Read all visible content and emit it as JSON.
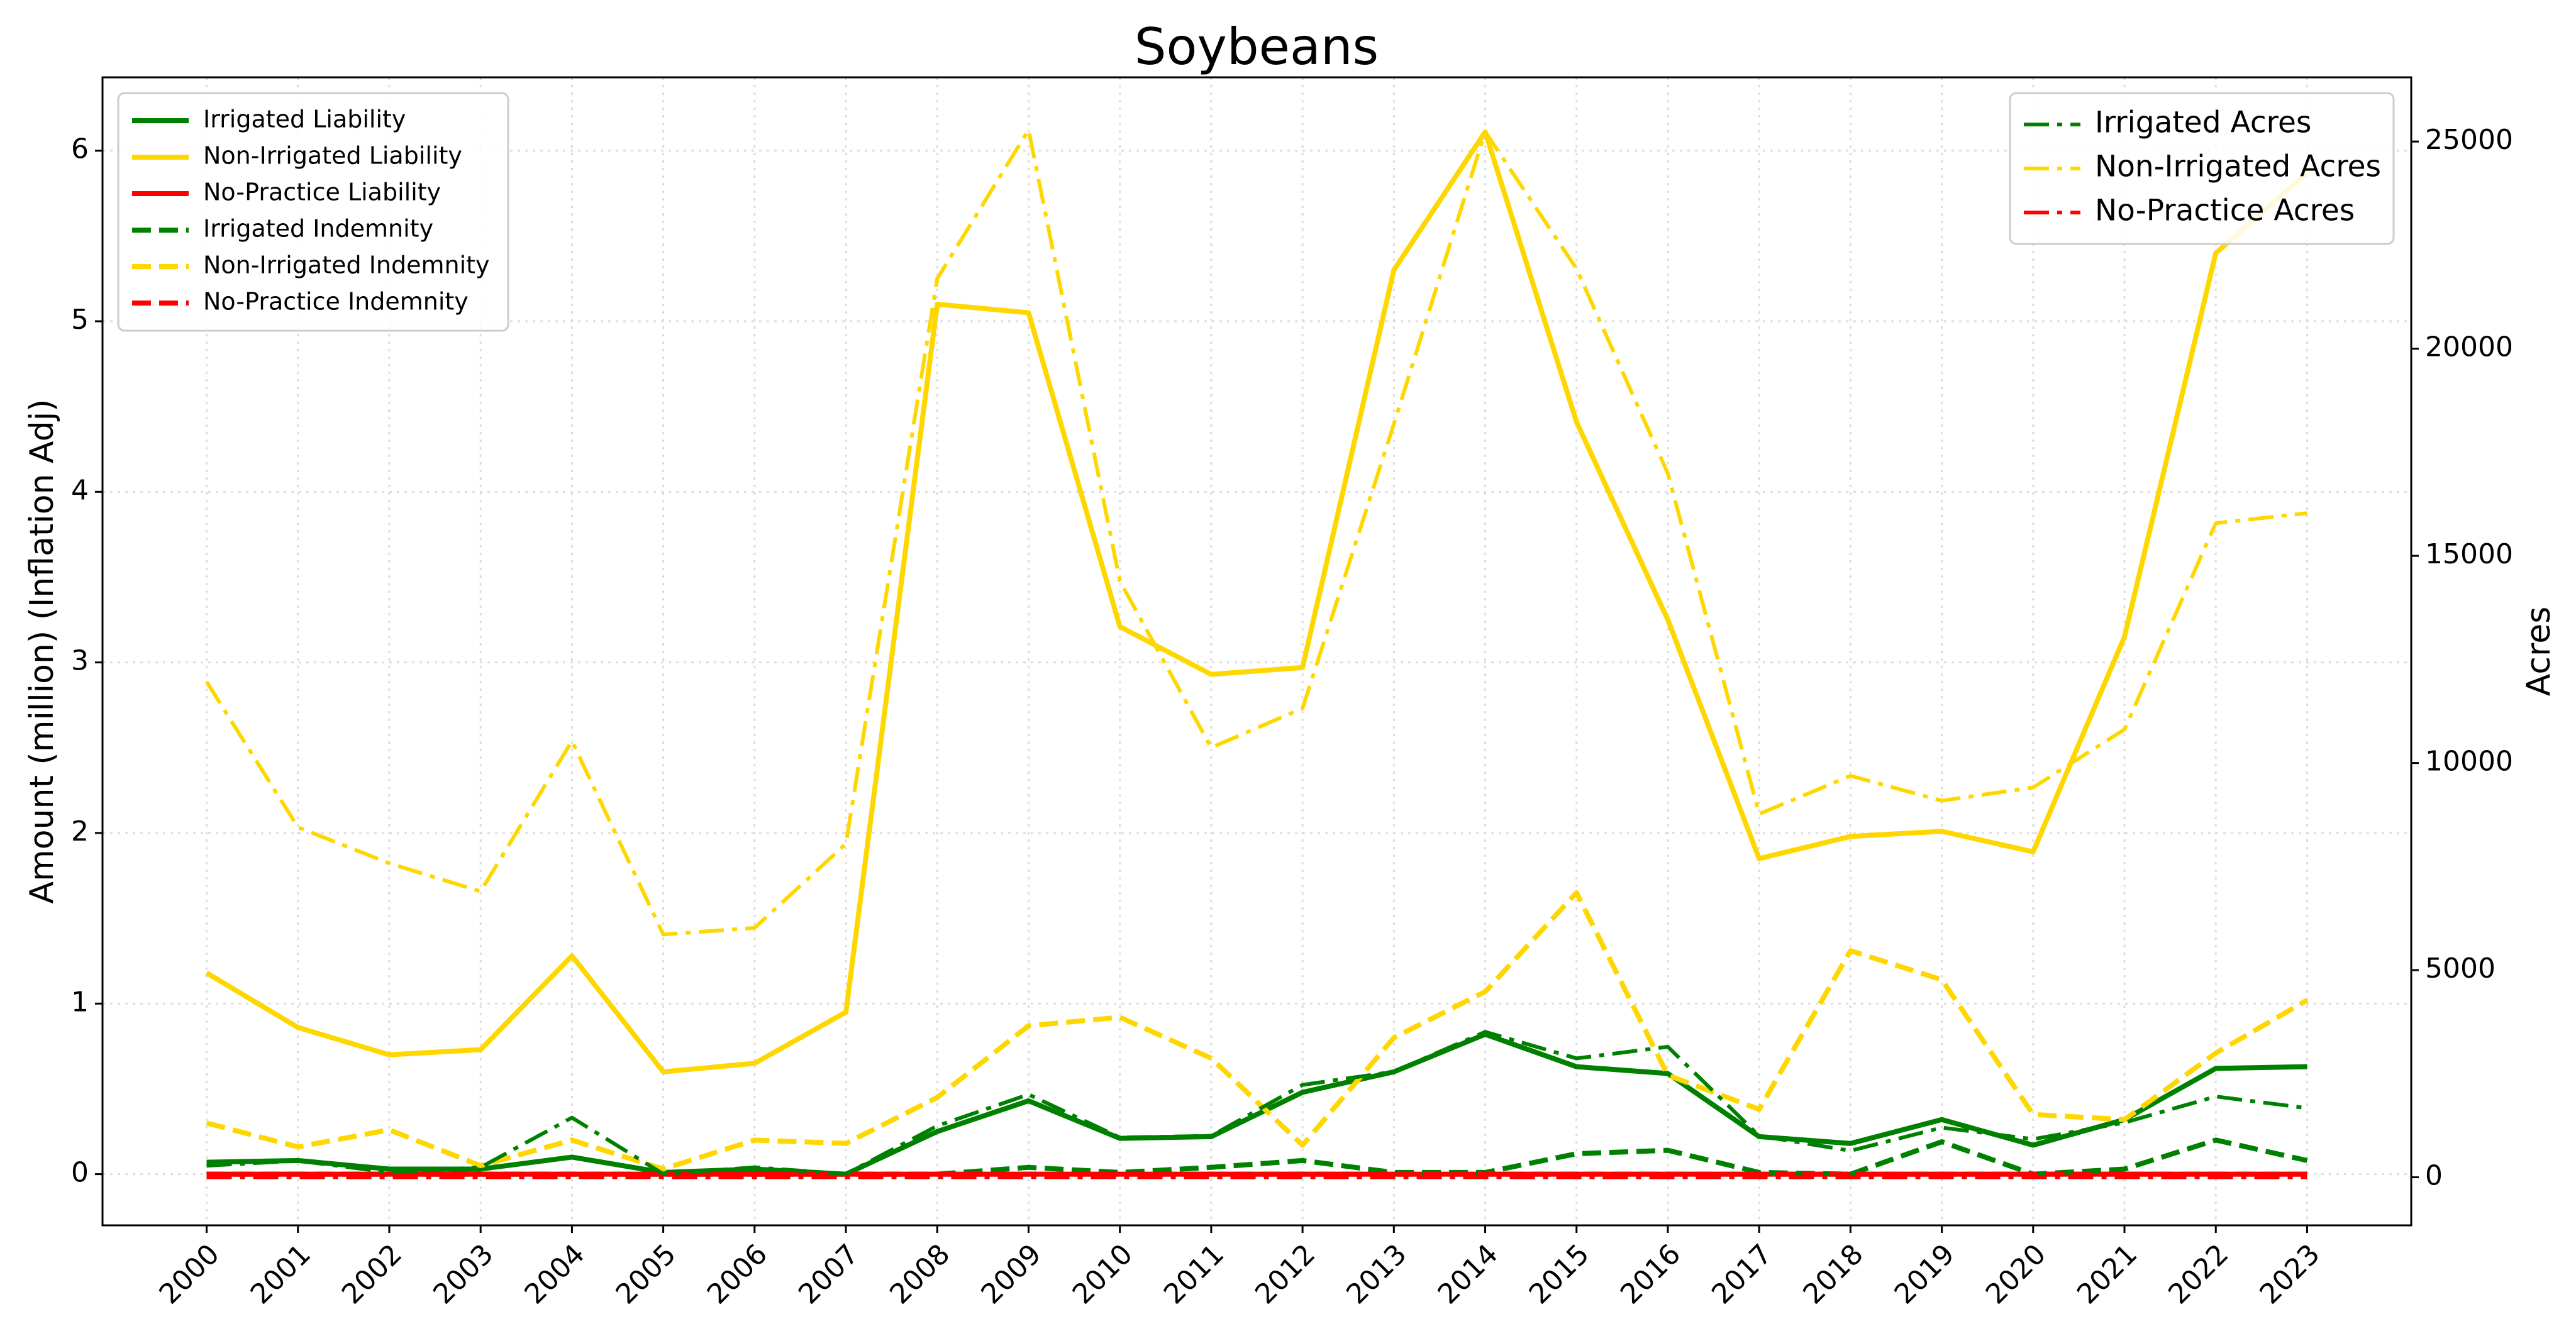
{
  "chart_data": {
    "type": "line",
    "title": "Soybeans",
    "ylabel": "Amount (million) (Inflation Adj)",
    "y2label": "Acres",
    "categories": [
      "2000",
      "2001",
      "2002",
      "2003",
      "2004",
      "2005",
      "2006",
      "2007",
      "2008",
      "2009",
      "2010",
      "2011",
      "2012",
      "2013",
      "2014",
      "2015",
      "2016",
      "2017",
      "2018",
      "2019",
      "2020",
      "2021",
      "2022",
      "2023"
    ],
    "ylim": [
      -0.3,
      6.43
    ],
    "yticks": [
      0,
      1,
      2,
      3,
      4,
      5,
      6
    ],
    "y2lim": [
      -1160,
      26550
    ],
    "y2ticks": [
      0,
      5000,
      10000,
      15000,
      20000,
      25000
    ],
    "grid": true,
    "legend": "upper left",
    "legend2": "upper right",
    "series": [
      {
        "name": "Irrigated Liability",
        "color": "#008000",
        "linestyle": "solid",
        "axis": "y",
        "values": [
          0.07,
          0.08,
          0.03,
          0.03,
          0.1,
          0.01,
          0.03,
          0.0,
          0.25,
          0.43,
          0.21,
          0.22,
          0.48,
          0.6,
          0.82,
          0.63,
          0.59,
          0.22,
          0.18,
          0.32,
          0.17,
          0.32,
          0.62,
          0.63
        ]
      },
      {
        "name": "Non-Irrigated Liability",
        "color": "#ffd700",
        "linestyle": "solid",
        "axis": "y",
        "values": [
          1.18,
          0.86,
          0.7,
          0.73,
          1.28,
          0.6,
          0.65,
          0.95,
          5.1,
          5.05,
          3.21,
          2.93,
          2.97,
          5.3,
          6.11,
          4.41,
          3.25,
          1.85,
          1.98,
          2.01,
          1.89,
          3.15,
          5.4,
          5.87
        ]
      },
      {
        "name": "No-Practice Liability",
        "color": "#ff0000",
        "linestyle": "solid",
        "axis": "y",
        "values": [
          0,
          0,
          0,
          0,
          0,
          0,
          0,
          0,
          0,
          0,
          0,
          0,
          0,
          0,
          0,
          0,
          0,
          0,
          0,
          0,
          0,
          0,
          0,
          0
        ]
      },
      {
        "name": "Irrigated Indemnity",
        "color": "#008000",
        "linestyle": "dashed",
        "axis": "y",
        "values": [
          0.0,
          0.0,
          0.0,
          0.0,
          0.0,
          0.0,
          0.0,
          0.0,
          0.0,
          0.04,
          0.01,
          0.04,
          0.08,
          0.01,
          0.01,
          0.12,
          0.14,
          0.01,
          0.0,
          0.19,
          0.0,
          0.03,
          0.2,
          0.08
        ]
      },
      {
        "name": "Non-Irrigated Indemnity",
        "color": "#ffd700",
        "linestyle": "dashed",
        "axis": "y",
        "values": [
          0.3,
          0.16,
          0.26,
          0.05,
          0.2,
          0.03,
          0.2,
          0.18,
          0.45,
          0.87,
          0.92,
          0.68,
          0.17,
          0.8,
          1.07,
          1.65,
          0.58,
          0.38,
          1.31,
          1.14,
          0.35,
          0.32,
          0.71,
          1.02
        ]
      },
      {
        "name": "No-Practice Indemnity",
        "color": "#ff0000",
        "linestyle": "dashed",
        "axis": "y",
        "values": [
          0,
          0,
          0,
          0,
          0,
          0,
          0,
          0,
          0,
          0,
          0,
          0,
          0,
          0,
          0,
          0,
          0,
          0,
          0,
          0,
          0,
          0,
          0,
          0
        ]
      },
      {
        "name": "Irrigated Acres",
        "color": "#008000",
        "linestyle": "dashdot",
        "axis": "y2",
        "values": [
          280,
          400,
          120,
          240,
          1440,
          80,
          240,
          80,
          1240,
          2000,
          960,
          1000,
          2230,
          2550,
          3510,
          2870,
          3150,
          1000,
          640,
          1200,
          920,
          1320,
          1950,
          1670
        ]
      },
      {
        "name": "Non-Irrigated Acres",
        "color": "#ffd700",
        "linestyle": "dashdot",
        "axis": "y2",
        "values": [
          11960,
          8450,
          7580,
          6900,
          10530,
          5860,
          6020,
          8050,
          21690,
          25280,
          14390,
          10370,
          11320,
          18180,
          25240,
          21930,
          16990,
          8770,
          9690,
          9090,
          9410,
          10810,
          15790,
          16030
        ]
      },
      {
        "name": "No-Practice Acres",
        "color": "#ff0000",
        "linestyle": "dashdot",
        "axis": "y2",
        "values": [
          0,
          0,
          0,
          0,
          0,
          0,
          0,
          0,
          0,
          0,
          0,
          0,
          0,
          0,
          0,
          0,
          0,
          0,
          0,
          0,
          0,
          0,
          0,
          0
        ]
      }
    ]
  }
}
